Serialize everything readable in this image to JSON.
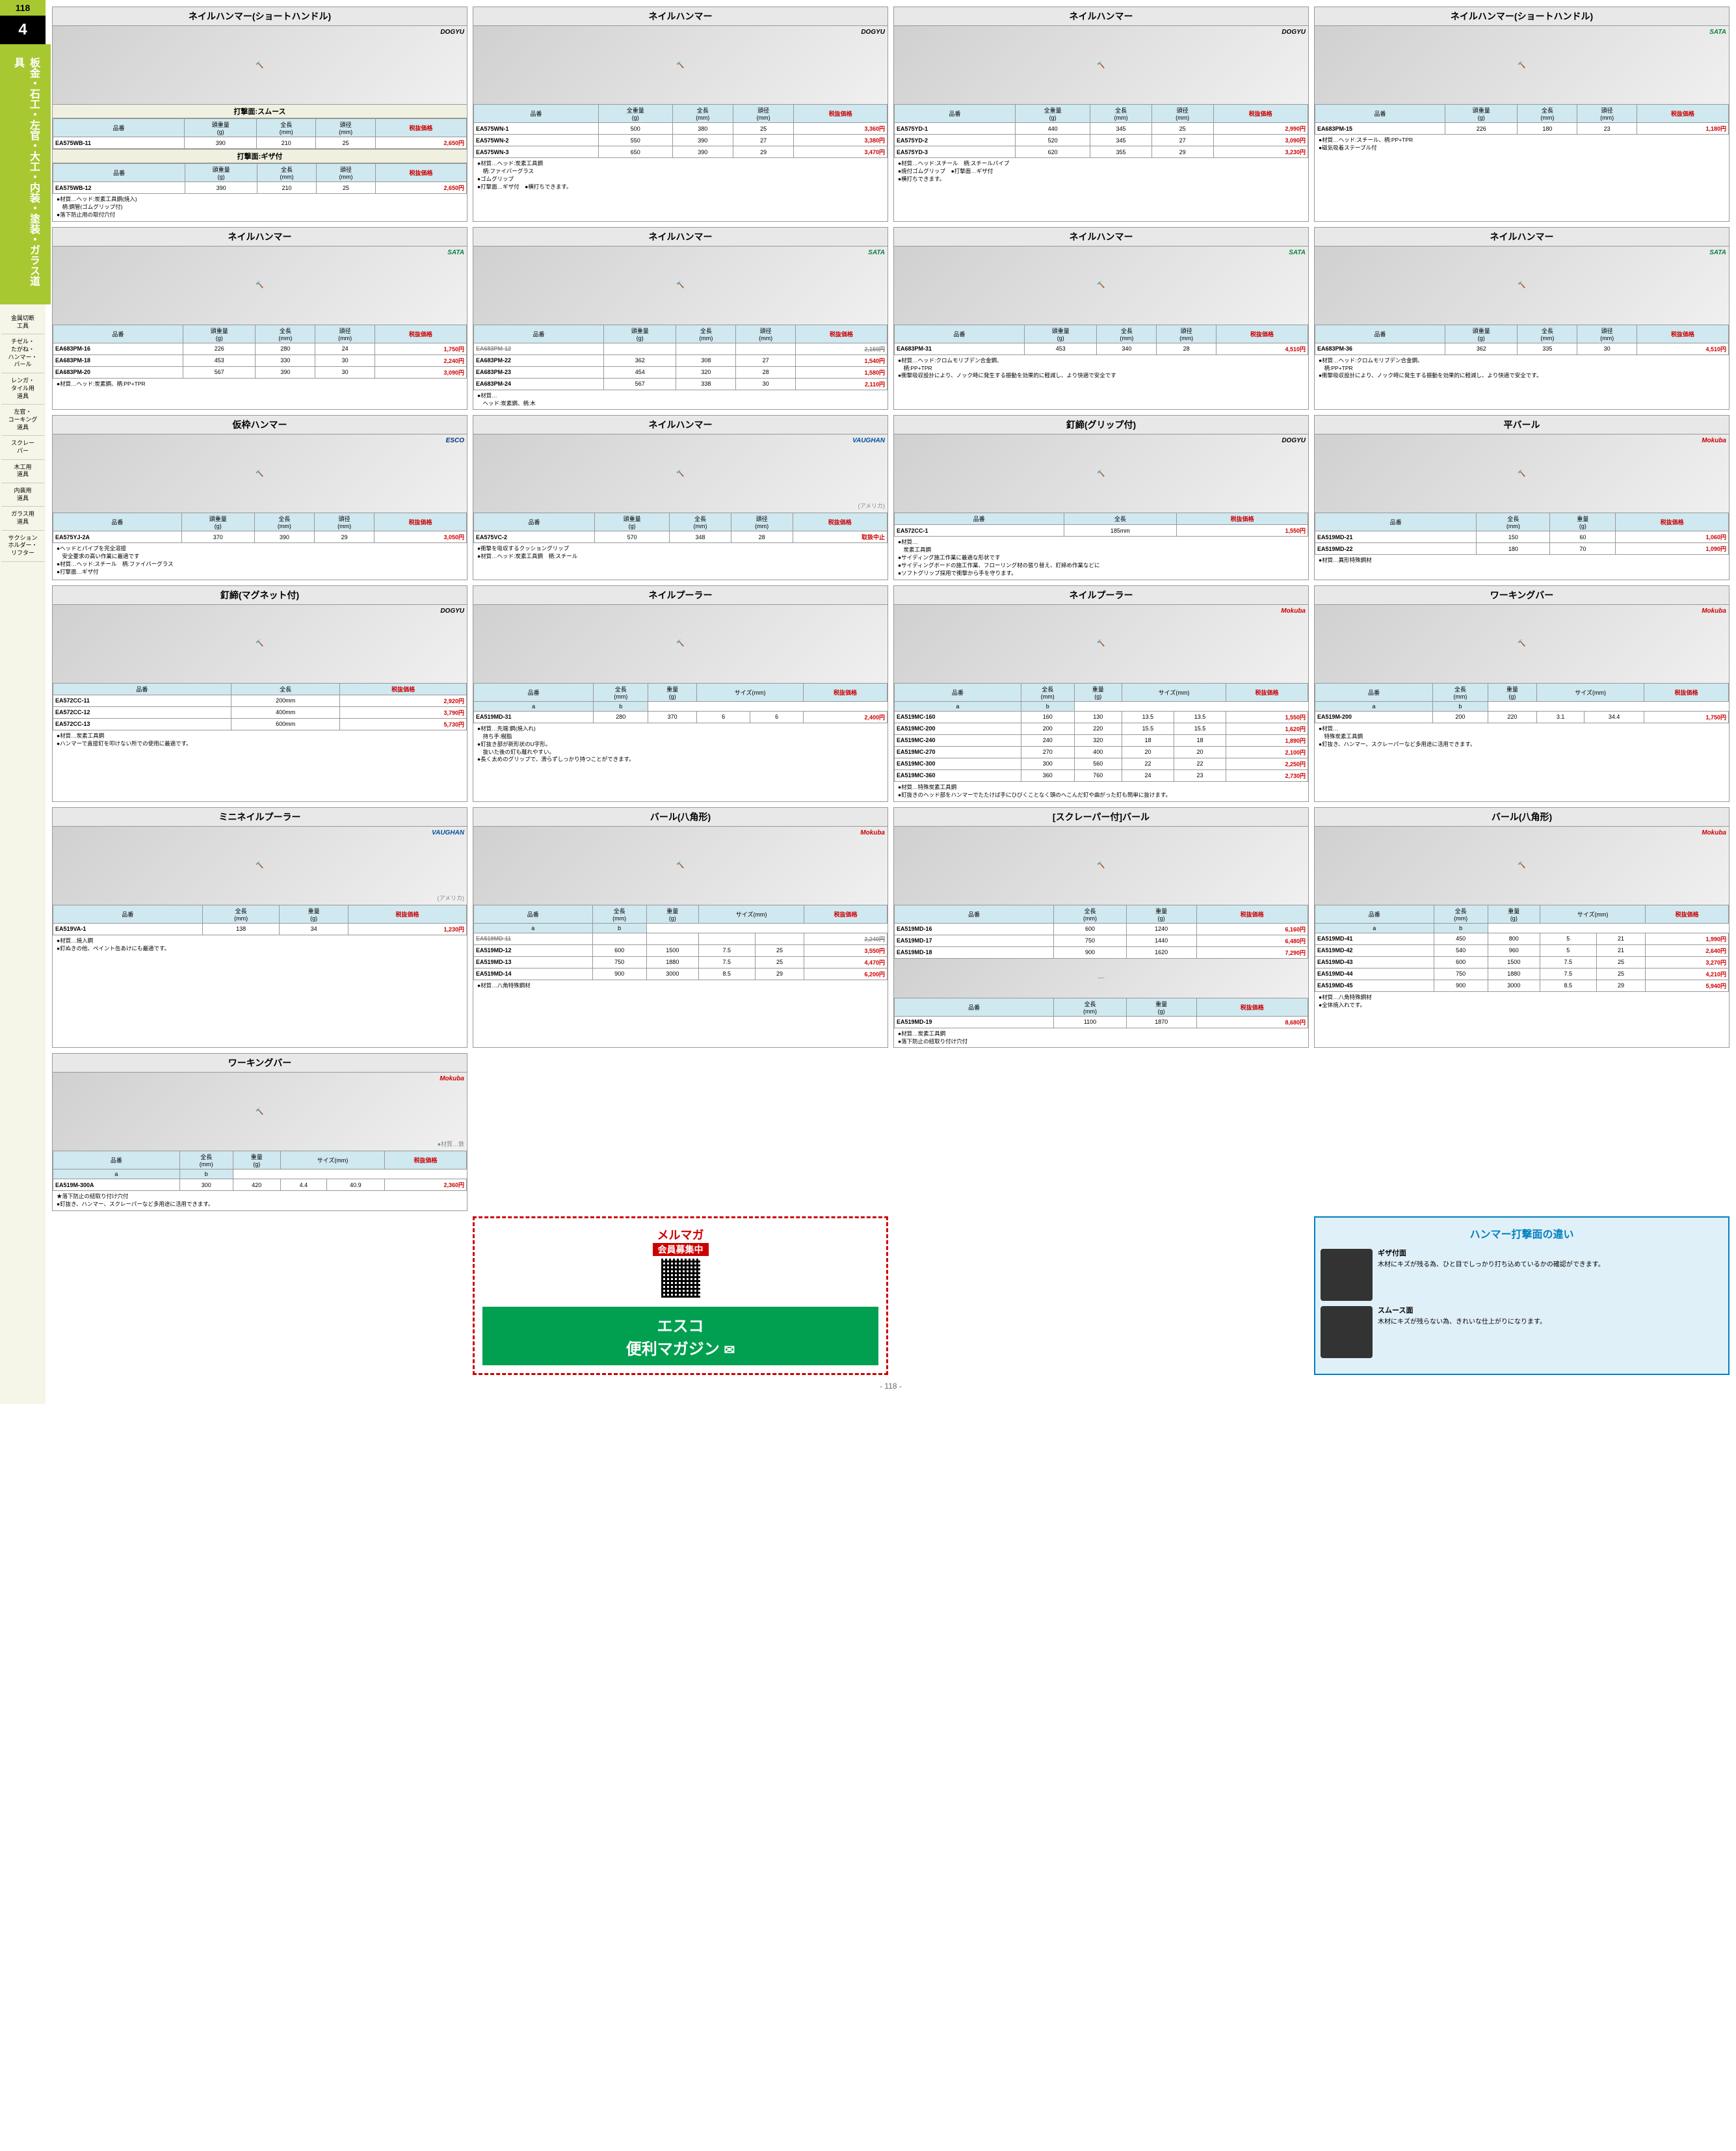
{
  "page_number": "118",
  "section_number": "4",
  "section_title": "板金・石工・左官・大工・内装・塗装・ガラス道具",
  "sidebar_menu": [
    "金属切断\n工具",
    "チゼル・\nたがね・\nハンマー・\nバール",
    "レンガ・\nタイル用\n道具",
    "左官・\nコーキング\n道具",
    "スクレー\nパー",
    "木工用\n道具",
    "内装用\n道具",
    "ガラス用\n道具",
    "サクション\nホルダー・\nリフター"
  ],
  "headers": {
    "hinban": "品番",
    "weight": "頭重量\n(g)",
    "length": "全長\n(mm)",
    "diameter": "頭径\n(mm)",
    "total_weight": "全重量\n(g)",
    "weight_g": "重量\n(g)",
    "size": "サイズ(mm)",
    "price": "税抜価格"
  },
  "products": [
    {
      "title": "ネイルハンマー(ショートハンドル)",
      "brand": "DOGYU",
      "sub_sections": [
        {
          "label": "打撃面:スムース",
          "cols": [
            "hinban",
            "weight",
            "length",
            "diameter",
            "price"
          ],
          "rows": [
            [
              "EA575WB-11",
              "390",
              "210",
              "25",
              "2,650円"
            ]
          ]
        },
        {
          "label": "打撃面:ギザ付",
          "cols": [
            "hinban",
            "weight",
            "length",
            "diameter",
            "price"
          ],
          "rows": [
            [
              "EA575WB-12",
              "390",
              "210",
              "25",
              "2,650円"
            ]
          ]
        }
      ],
      "notes": [
        "●材質…ヘッド:炭素工具鋼(焼入)",
        "　柄:鋼管(ゴムグリップ付)",
        "●落下防止用の取付穴付"
      ]
    },
    {
      "title": "ネイルハンマー",
      "brand": "DOGYU",
      "cols": [
        "hinban",
        "total_weight",
        "length",
        "diameter",
        "price"
      ],
      "rows": [
        [
          "EA575WN-1",
          "500",
          "380",
          "25",
          "3,360円"
        ],
        [
          "EA575WN-2",
          "550",
          "390",
          "27",
          "3,380円"
        ],
        [
          "EA575WN-3",
          "650",
          "390",
          "29",
          "3,470円"
        ]
      ],
      "notes": [
        "●材質…ヘッド:炭素工具鋼",
        "　柄:ファイバーグラス",
        "●ゴムグリップ",
        "●打撃面…ギザ付　●横打ちできます。"
      ]
    },
    {
      "title": "ネイルハンマー",
      "brand": "DOGYU",
      "cols": [
        "hinban",
        "total_weight",
        "length",
        "diameter",
        "price"
      ],
      "rows": [
        [
          "EA575YD-1",
          "440",
          "345",
          "25",
          "2,990円"
        ],
        [
          "EA575YD-2",
          "520",
          "345",
          "27",
          "3,090円"
        ],
        [
          "EA575YD-3",
          "620",
          "355",
          "29",
          "3,230円"
        ]
      ],
      "notes": [
        "●材質…ヘッド:スチール　柄:スチールパイプ",
        "●焼付ゴムグリップ　●打撃面…ギザ付",
        "●横打ちできます。"
      ]
    },
    {
      "title": "ネイルハンマー(ショートハンドル)",
      "brand": "SATA",
      "cols": [
        "hinban",
        "weight",
        "length",
        "diameter",
        "price"
      ],
      "rows": [
        [
          "EA683PM-15",
          "226",
          "180",
          "23",
          "1,180円"
        ]
      ],
      "notes": [
        "●材質…ヘッド:スチール、柄:PP+TPR",
        "●磁気吸着ステープル付"
      ]
    },
    {
      "title": "ネイルハンマー",
      "brand": "SATA",
      "cols": [
        "hinban",
        "weight",
        "length",
        "diameter",
        "price"
      ],
      "rows": [
        [
          "EA683PM-16",
          "226",
          "280",
          "24",
          "1,750円"
        ],
        [
          "EA683PM-18",
          "453",
          "330",
          "30",
          "2,240円"
        ],
        [
          "EA683PM-20",
          "567",
          "390",
          "30",
          "3,090円"
        ]
      ],
      "notes": [
        "●材質…ヘッド:炭素鋼、柄:PP+TPR"
      ]
    },
    {
      "title": "ネイルハンマー",
      "brand": "SATA",
      "cols": [
        "hinban",
        "weight",
        "length",
        "diameter",
        "price"
      ],
      "rows": [
        [
          "EA683PM-22",
          "362",
          "308",
          "27",
          "1,540円"
        ],
        [
          "EA683PM-23",
          "454",
          "320",
          "28",
          "1,580円"
        ],
        [
          "EA683PM-24",
          "567",
          "338",
          "30",
          "2,110円"
        ]
      ],
      "strikeout_row": [
        "EA683PM-12",
        "",
        "",
        "",
        "2,150円"
      ],
      "notes": [
        "●材質…",
        "　ヘッド:炭素鋼、柄:木"
      ]
    },
    {
      "title": "ネイルハンマー",
      "brand": "SATA",
      "cols": [
        "hinban",
        "weight",
        "length",
        "diameter",
        "price"
      ],
      "rows": [
        [
          "EA683PM-31",
          "453",
          "340",
          "28",
          "4,510円"
        ]
      ],
      "notes": [
        "●材質…ヘッド:クロムモリブデン合金鋼、",
        "　柄:PP+TPR",
        "●衝撃吸収設計により、ノック時に発生する振動を効果的に軽減し、より快適で安全です"
      ]
    },
    {
      "title": "ネイルハンマー",
      "brand": "SATA",
      "cols": [
        "hinban",
        "weight",
        "length",
        "diameter",
        "price"
      ],
      "rows": [
        [
          "EA683PM-36",
          "362",
          "335",
          "30",
          "4,510円"
        ]
      ],
      "notes": [
        "●材質…ヘッド:クロムモリブデン合金鋼、",
        "　柄:PP+TPR",
        "●衝撃吸収設計により、ノック時に発生する振動を効果的に軽減し、より快適で安全です。"
      ]
    },
    {
      "title": "仮枠ハンマー",
      "brand": "ESCO",
      "cols": [
        "hinban",
        "weight",
        "length",
        "diameter",
        "price"
      ],
      "rows": [
        [
          "EA575YJ-2A",
          "370",
          "390",
          "29",
          "3,050円"
        ]
      ],
      "notes": [
        "●ヘッドとパイプを完全溶接",
        "　安全要求の高い作業に最適です",
        "●材質…ヘッド:スチール　柄:ファイバーグラス",
        "●打撃面…ギザ付"
      ]
    },
    {
      "title": "ネイルハンマー",
      "brand": "VAUGHAN",
      "sublabel": "(アメリカ)",
      "cols": [
        "hinban",
        "weight",
        "length",
        "diameter",
        "price"
      ],
      "rows": [
        [
          "EA575VC-2",
          "570",
          "348",
          "28",
          "取扱中止"
        ]
      ],
      "notes": [
        "●衝撃を吸収するクッショングリップ",
        "●材質…ヘッド:炭素工具鋼　柄:スチール"
      ]
    },
    {
      "title": "釘締(グリップ付)",
      "brand": "DOGYU",
      "cols": [
        "hinban",
        "length",
        "price"
      ],
      "col_labels": [
        "品番",
        "全長",
        "税抜価格"
      ],
      "rows": [
        [
          "EA572CC-1",
          "185mm",
          "1,550円"
        ]
      ],
      "notes": [
        "●材質…",
        "　炭素工具鋼",
        "●サイディング施工作業に最適な形状です",
        "●サイディングボードの施工作業、フローリング材の張り替え、釘締め作業などに",
        "●ソフトグリップ採用で衝撃から手を守ります。"
      ]
    },
    {
      "title": "平バール",
      "brand": "Mokuba",
      "cols": [
        "hinban",
        "length",
        "weight_g",
        "price"
      ],
      "col_labels": [
        "品番",
        "全長\n(mm)",
        "重量\n(g)",
        "税抜価格"
      ],
      "rows": [
        [
          "EA519MD-21",
          "150",
          "60",
          "1,060円"
        ],
        [
          "EA519MD-22",
          "180",
          "70",
          "1,090円"
        ]
      ],
      "notes": [
        "●材質…異形特殊鋼材"
      ]
    },
    {
      "title": "釘締(マグネット付)",
      "brand": "DOGYU",
      "cols": [
        "hinban",
        "length",
        "price"
      ],
      "col_labels": [
        "品番",
        "全長",
        "税抜価格"
      ],
      "rows": [
        [
          "EA572CC-11",
          "200mm",
          "2,920円"
        ],
        [
          "EA572CC-12",
          "400mm",
          "3,790円"
        ],
        [
          "EA572CC-13",
          "600mm",
          "5,730円"
        ]
      ],
      "notes": [
        "●材質…炭素工具鋼",
        "●ハンマーで直接釘を叩けない所での使用に最適です。"
      ]
    },
    {
      "title": "ネイルプーラー",
      "brand": "",
      "cols": [
        "hinban",
        "length",
        "weight_g",
        "a",
        "b",
        "price"
      ],
      "col_labels": [
        "品番",
        "全長\n(mm)",
        "重量\n(g)",
        "a",
        "b",
        "税抜価格"
      ],
      "size_header": "サイズ(mm)",
      "rows": [
        [
          "EA519MD-31",
          "280",
          "370",
          "6",
          "6",
          "2,400円"
        ]
      ],
      "notes": [
        "●材質…先端:鋼(焼入れ)",
        "　持ち手:樹脂",
        "●釘抜き部が新形状のU字形。",
        "　抜いた後の釘も離れやすい。",
        "●長く太めのグリップで、滑らずしっかり持つことができます。"
      ]
    },
    {
      "title": "ネイルプーラー",
      "brand": "Mokuba",
      "cols": [
        "hinban",
        "length",
        "weight_g",
        "a",
        "b",
        "price"
      ],
      "col_labels": [
        "品番",
        "全長\n(mm)",
        "重量\n(g)",
        "a",
        "b",
        "税抜価格"
      ],
      "size_header": "サイズ(mm)",
      "rows": [
        [
          "EA519MC-160",
          "160",
          "130",
          "13.5",
          "13.5",
          "1,550円"
        ],
        [
          "EA519MC-200",
          "200",
          "220",
          "15.5",
          "15.5",
          "1,620円"
        ],
        [
          "EA519MC-240",
          "240",
          "320",
          "18",
          "18",
          "1,890円"
        ],
        [
          "EA519MC-270",
          "270",
          "400",
          "20",
          "20",
          "2,100円"
        ],
        [
          "EA519MC-300",
          "300",
          "560",
          "22",
          "22",
          "2,250円"
        ],
        [
          "EA519MC-360",
          "360",
          "760",
          "24",
          "23",
          "2,730円"
        ]
      ],
      "notes": [
        "●材質…特殊炭素工具鋼",
        "●釘抜きのヘッド部をハンマーでたたけば手にひびくことなく頭のへこんだ釘や曲がった釘も簡単に抜けます。"
      ]
    },
    {
      "title": "ワーキングバー",
      "brand": "Mokuba",
      "cols": [
        "hinban",
        "length",
        "weight_g",
        "a",
        "b",
        "price"
      ],
      "col_labels": [
        "品番",
        "全長\n(mm)",
        "重量\n(g)",
        "a",
        "b",
        "税抜価格"
      ],
      "size_header": "サイズ(mm)",
      "rows": [
        [
          "EA519M-200",
          "200",
          "220",
          "3.1",
          "34.4",
          "1,750円"
        ]
      ],
      "notes": [
        "●材質…",
        "　特殊炭素工具鋼",
        "●釘抜き、ハンマー、スクレーパーなど多用途に活用できます。"
      ]
    },
    {
      "title": "ミニネイルプーラー",
      "brand": "VAUGHAN",
      "sublabel": "(アメリカ)",
      "cols": [
        "hinban",
        "length",
        "weight_g",
        "price"
      ],
      "col_labels": [
        "品番",
        "全長\n(mm)",
        "重量\n(g)",
        "税抜価格"
      ],
      "rows": [
        [
          "EA519VA-1",
          "138",
          "34",
          "1,230円"
        ]
      ],
      "notes": [
        "●材質…焼入鋼",
        "●釘ぬきの他、ペイント缶あけにも最適です。"
      ]
    },
    {
      "title": "バール(八角形)",
      "brand": "Mokuba",
      "cols": [
        "hinban",
        "length",
        "weight_g",
        "a",
        "b",
        "price"
      ],
      "col_labels": [
        "品番",
        "全長\n(mm)",
        "重量\n(g)",
        "a",
        "b",
        "税抜価格"
      ],
      "size_header": "サイズ(mm)",
      "strikeout_row": [
        "EA519MD-11",
        "",
        "",
        "",
        "",
        "2,240円"
      ],
      "rows": [
        [
          "EA519MD-12",
          "600",
          "1500",
          "7.5",
          "25",
          "3,550円"
        ],
        [
          "EA519MD-13",
          "750",
          "1880",
          "7.5",
          "25",
          "4,470円"
        ],
        [
          "EA519MD-14",
          "900",
          "3000",
          "8.5",
          "29",
          "6,200円"
        ]
      ],
      "notes": [
        "●材質…八角特殊鋼材"
      ]
    },
    {
      "title": "[スクレーパー付]バール",
      "brand": "",
      "cols": [
        "hinban",
        "length",
        "weight_g",
        "price"
      ],
      "col_labels": [
        "品番",
        "全長\n(mm)",
        "重量\n(g)",
        "税抜価格"
      ],
      "rows": [
        [
          "EA519MD-16",
          "600",
          "1240",
          "6,160円"
        ],
        [
          "EA519MD-17",
          "750",
          "1440",
          "6,480円"
        ],
        [
          "EA519MD-18",
          "900",
          "1620",
          "7,290円"
        ]
      ],
      "rows2": [
        [
          "EA519MD-19",
          "1100",
          "1870",
          "8,680円"
        ]
      ],
      "notes": [
        "●材質…炭素工具鋼",
        "●落下防止の紐取り付け穴付"
      ]
    },
    {
      "title": "バール(八角形)",
      "brand": "Mokuba",
      "cols": [
        "hinban",
        "length",
        "weight_g",
        "a",
        "b",
        "price"
      ],
      "col_labels": [
        "品番",
        "全長\n(mm)",
        "重量\n(g)",
        "a",
        "b",
        "税抜価格"
      ],
      "size_header": "サイズ(mm)",
      "rows": [
        [
          "EA519MD-41",
          "450",
          "800",
          "5",
          "21",
          "1,990円"
        ],
        [
          "EA519MD-42",
          "540",
          "960",
          "5",
          "21",
          "2,640円"
        ],
        [
          "EA519MD-43",
          "600",
          "1500",
          "7.5",
          "25",
          "3,270円"
        ],
        [
          "EA519MD-44",
          "750",
          "1880",
          "7.5",
          "25",
          "4,210円"
        ],
        [
          "EA519MD-45",
          "900",
          "3000",
          "8.5",
          "29",
          "5,940円"
        ]
      ],
      "notes": [
        "●材質…八角特殊鋼材",
        "●全体焼入れです。"
      ]
    },
    {
      "title": "ワーキングバー",
      "brand": "Mokuba",
      "cols": [
        "hinban",
        "length",
        "weight_g",
        "a",
        "b",
        "price"
      ],
      "col_labels": [
        "品番",
        "全長\n(mm)",
        "重量\n(g)",
        "a",
        "b",
        "税抜価格"
      ],
      "size_header": "サイズ(mm)",
      "sublabel": "●材質…鉄",
      "rows": [
        [
          "EA519M-300A",
          "300",
          "420",
          "4.4",
          "40.9",
          "2,360円"
        ]
      ],
      "notes": [
        "★落下防止の紐取り付け穴付",
        "●釘抜き、ハンマー、スクレーパーなど多用途に活用できます。"
      ]
    }
  ],
  "info_box": {
    "title": "ハンマー打撃面の違い",
    "items": [
      {
        "label": "ギザ付面",
        "text": "木材にキズが残る為、ひと目でしっかり打ち込めているかの確認ができます。"
      },
      {
        "label": "スムース面",
        "text": "木材にキズが残らない為、きれいな仕上がりになります。"
      }
    ]
  },
  "merumaga": {
    "line1": "メルマガ",
    "line2": "会員募集中",
    "big1": "エスコ",
    "big2": "便利マガジン"
  },
  "footer": "- 118 -"
}
